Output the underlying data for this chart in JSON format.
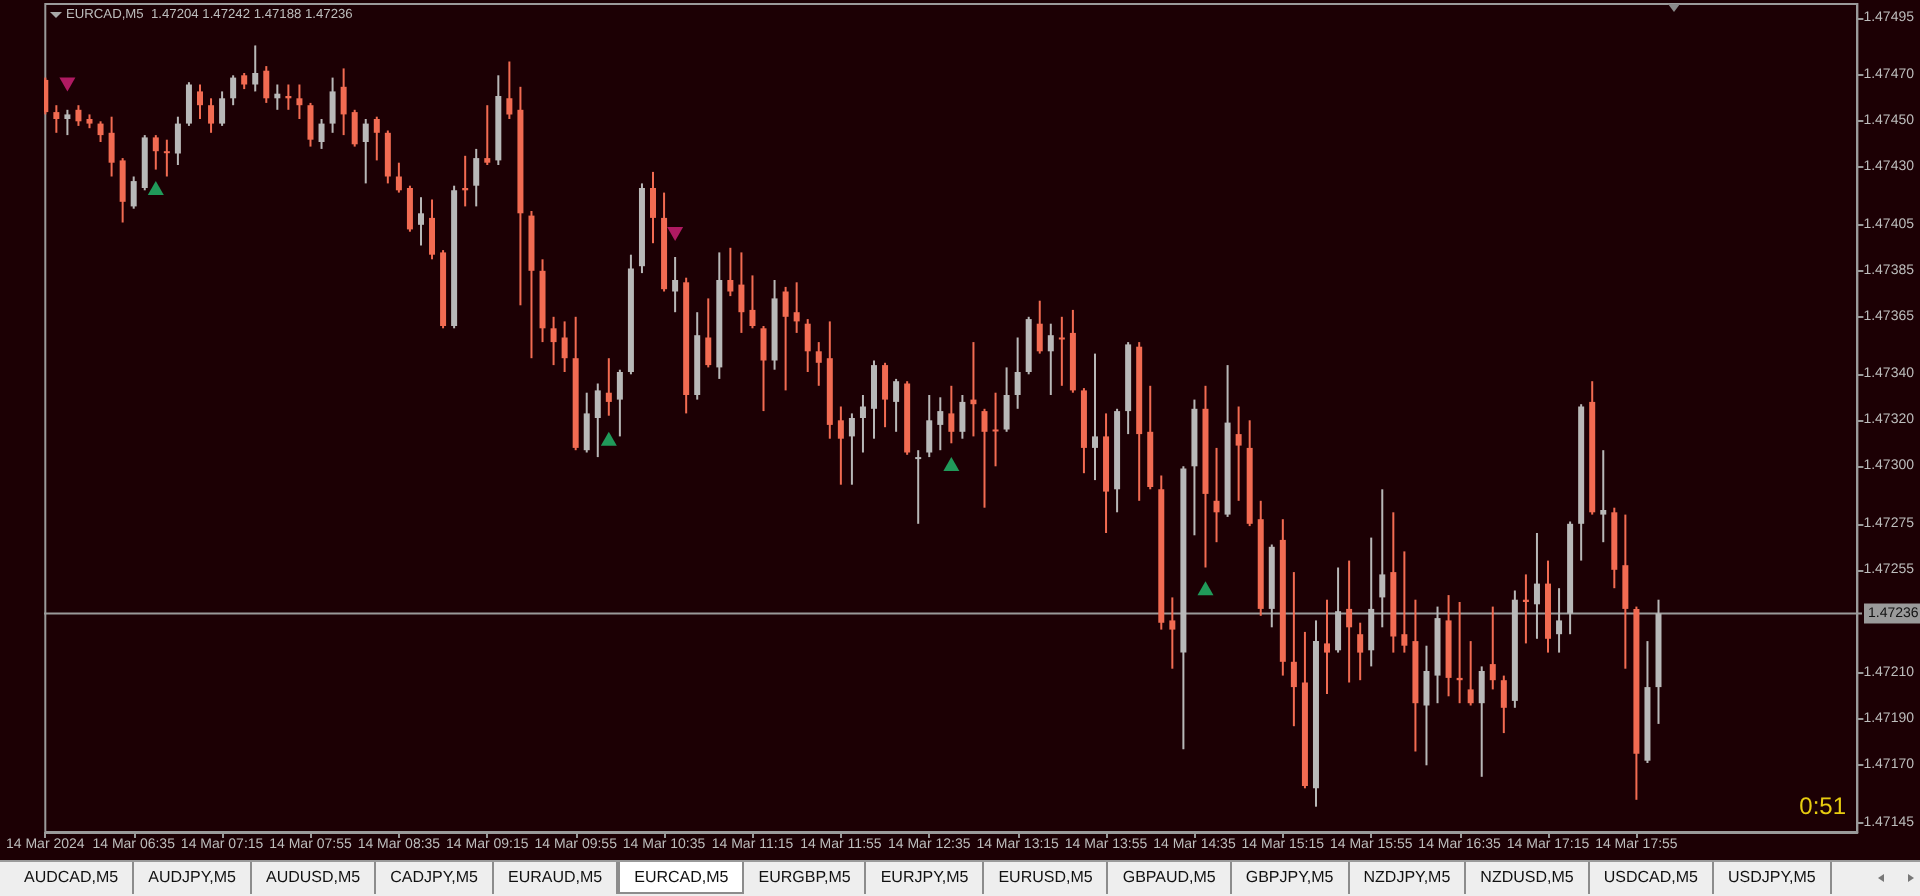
{
  "chart_data": {
    "type": "candlestick",
    "title": "EURCAD,M5  1.47204 1.47242 1.47188 1.47236",
    "categories": [
      "14 Mar 2024",
      null,
      null,
      null,
      null,
      null,
      null,
      null,
      "14 Mar 06:35",
      null,
      null,
      null,
      null,
      null,
      null,
      null,
      "14 Mar 07:15",
      null,
      null,
      null,
      null,
      null,
      null,
      null,
      "14 Mar 07:55",
      null,
      null,
      null,
      null,
      null,
      null,
      null,
      "14 Mar 08:35",
      null,
      null,
      null,
      null,
      null,
      null,
      null,
      "14 Mar 09:15",
      null,
      null,
      null,
      null,
      null,
      null,
      null,
      "14 Mar 09:55",
      null,
      null,
      null,
      null,
      null,
      null,
      null,
      "14 Mar 10:35",
      null,
      null,
      null,
      null,
      null,
      null,
      null,
      "14 Mar 11:15",
      null,
      null,
      null,
      null,
      null,
      null,
      null,
      "14 Mar 11:55",
      null,
      null,
      null,
      null,
      null,
      null,
      null,
      "14 Mar 12:35",
      null,
      null,
      null,
      null,
      null,
      null,
      null,
      "14 Mar 13:15",
      null,
      null,
      null,
      null,
      null,
      null,
      null,
      "14 Mar 13:55",
      null,
      null,
      null,
      null,
      null,
      null,
      null,
      "14 Mar 14:35",
      null,
      null,
      null,
      null,
      null,
      null,
      null,
      "14 Mar 15:15",
      null,
      null,
      null,
      null,
      null,
      null,
      null,
      "14 Mar 15:55",
      null,
      null,
      null,
      null,
      null,
      null,
      null,
      "14 Mar 16:35",
      null,
      null,
      null,
      null,
      null,
      null,
      null,
      "14 Mar 17:15",
      null,
      null,
      null,
      null,
      null,
      null,
      null,
      "14 Mar 17:55",
      null,
      null,
      null,
      null,
      null,
      null,
      null,
      null,
      null,
      null,
      null,
      null,
      null,
      null,
      null,
      null,
      null,
      null,
      null,
      null
    ],
    "ohlc": [
      [
        1.47468,
        1.47469,
        1.47453,
        1.47454
      ],
      [
        1.47454,
        1.47457,
        1.47445,
        1.47451
      ],
      [
        1.47451,
        1.47455,
        1.47444,
        1.47453
      ],
      [
        1.47455,
        1.47457,
        1.47448,
        1.4745
      ],
      [
        1.47451,
        1.47453,
        1.47447,
        1.47449
      ],
      [
        1.47449,
        1.4745,
        1.47441,
        1.47444
      ],
      [
        1.47445,
        1.47452,
        1.47426,
        1.47432
      ],
      [
        1.47433,
        1.47434,
        1.47406,
        1.47415
      ],
      [
        1.47413,
        1.47426,
        1.47412,
        1.47424
      ],
      [
        1.47421,
        1.47444,
        1.4742,
        1.47443
      ],
      [
        1.47443,
        1.47444,
        1.47429,
        1.47437
      ],
      [
        1.47437,
        1.47442,
        1.47426,
        1.47437
      ],
      [
        1.47436,
        1.47452,
        1.47431,
        1.47449
      ],
      [
        1.47449,
        1.47467,
        1.47448,
        1.47466
      ],
      [
        1.47463,
        1.47466,
        1.47451,
        1.47457
      ],
      [
        1.47457,
        1.4746,
        1.47445,
        1.47449
      ],
      [
        1.47449,
        1.47463,
        1.47448,
        1.4746
      ],
      [
        1.4746,
        1.4747,
        1.47457,
        1.47469
      ],
      [
        1.4747,
        1.47471,
        1.47464,
        1.47466
      ],
      [
        1.47466,
        1.47483,
        1.47463,
        1.47471
      ],
      [
        1.47472,
        1.47474,
        1.47458,
        1.4746
      ],
      [
        1.4746,
        1.47466,
        1.47455,
        1.47462
      ],
      [
        1.47461,
        1.47466,
        1.47455,
        1.4746
      ],
      [
        1.4746,
        1.47466,
        1.47451,
        1.47457
      ],
      [
        1.47457,
        1.47458,
        1.47439,
        1.47442
      ],
      [
        1.47441,
        1.47451,
        1.47438,
        1.47449
      ],
      [
        1.47449,
        1.47469,
        1.47445,
        1.47463
      ],
      [
        1.47465,
        1.47473,
        1.47444,
        1.47453
      ],
      [
        1.47454,
        1.47455,
        1.47439,
        1.4744
      ],
      [
        1.47441,
        1.47451,
        1.47423,
        1.47449
      ],
      [
        1.47451,
        1.47452,
        1.47433,
        1.47445
      ],
      [
        1.47445,
        1.47446,
        1.47423,
        1.47426
      ],
      [
        1.47426,
        1.47432,
        1.47419,
        1.4742
      ],
      [
        1.47421,
        1.47422,
        1.47402,
        1.47403
      ],
      [
        1.47405,
        1.47417,
        1.47396,
        1.4741
      ],
      [
        1.47408,
        1.47416,
        1.4739,
        1.47392
      ],
      [
        1.47393,
        1.47394,
        1.4736,
        1.47361
      ],
      [
        1.47361,
        1.47422,
        1.4736,
        1.4742
      ],
      [
        1.47421,
        1.47435,
        1.47413,
        1.4742
      ],
      [
        1.47422,
        1.47438,
        1.47413,
        1.47434
      ],
      [
        1.47434,
        1.47457,
        1.47431,
        1.47432
      ],
      [
        1.47433,
        1.4747,
        1.47431,
        1.47461
      ],
      [
        1.4746,
        1.47476,
        1.47451,
        1.47453
      ],
      [
        1.47455,
        1.47465,
        1.4737,
        1.4741
      ],
      [
        1.47409,
        1.47411,
        1.47347,
        1.47385
      ],
      [
        1.47385,
        1.4739,
        1.47354,
        1.4736
      ],
      [
        1.4736,
        1.47365,
        1.47344,
        1.47354
      ],
      [
        1.47356,
        1.47363,
        1.47341,
        1.47347
      ],
      [
        1.47347,
        1.47365,
        1.47307,
        1.47308
      ],
      [
        1.47307,
        1.47332,
        1.47306,
        1.47323
      ],
      [
        1.47321,
        1.47336,
        1.47304,
        1.47333
      ],
      [
        1.47332,
        1.47347,
        1.47322,
        1.47328
      ],
      [
        1.47329,
        1.47342,
        1.47313,
        1.47341
      ],
      [
        1.47341,
        1.47392,
        1.4734,
        1.47386
      ],
      [
        1.47387,
        1.47423,
        1.47384,
        1.47421
      ],
      [
        1.47421,
        1.47428,
        1.47397,
        1.47408
      ],
      [
        1.47408,
        1.47419,
        1.47376,
        1.47377
      ],
      [
        1.47376,
        1.47391,
        1.47367,
        1.47381
      ],
      [
        1.4738,
        1.47382,
        1.47323,
        1.47331
      ],
      [
        1.47331,
        1.47367,
        1.47329,
        1.47357
      ],
      [
        1.47356,
        1.47373,
        1.47343,
        1.47344
      ],
      [
        1.47343,
        1.47393,
        1.47338,
        1.47381
      ],
      [
        1.47381,
        1.47395,
        1.47374,
        1.47376
      ],
      [
        1.47379,
        1.47393,
        1.47358,
        1.47367
      ],
      [
        1.47368,
        1.47383,
        1.4736,
        1.47361
      ],
      [
        1.4736,
        1.47361,
        1.47324,
        1.47346
      ],
      [
        1.47346,
        1.47381,
        1.47342,
        1.47373
      ],
      [
        1.47376,
        1.47378,
        1.47333,
        1.47365
      ],
      [
        1.47367,
        1.4738,
        1.47358,
        1.47363
      ],
      [
        1.47362,
        1.47364,
        1.47341,
        1.4735
      ],
      [
        1.4735,
        1.47354,
        1.47335,
        1.47345
      ],
      [
        1.47347,
        1.47363,
        1.47312,
        1.47318
      ],
      [
        1.4732,
        1.47326,
        1.47292,
        1.47312
      ],
      [
        1.47313,
        1.47323,
        1.47292,
        1.47321
      ],
      [
        1.47321,
        1.47331,
        1.47306,
        1.47326
      ],
      [
        1.47325,
        1.47346,
        1.47312,
        1.47344
      ],
      [
        1.47344,
        1.47345,
        1.47317,
        1.47329
      ],
      [
        1.47328,
        1.47338,
        1.47315,
        1.47337
      ],
      [
        1.47336,
        1.47337,
        1.47305,
        1.47306
      ],
      [
        1.47304,
        1.47307,
        1.47275,
        1.47304
      ],
      [
        1.47306,
        1.47331,
        1.47304,
        1.4732
      ],
      [
        1.47318,
        1.4733,
        1.47307,
        1.47324
      ],
      [
        1.47323,
        1.47335,
        1.4731,
        1.47315
      ],
      [
        1.47315,
        1.47331,
        1.47312,
        1.47328
      ],
      [
        1.47329,
        1.47354,
        1.47313,
        1.47327
      ],
      [
        1.47324,
        1.47325,
        1.47282,
        1.47315
      ],
      [
        1.47316,
        1.47332,
        1.473,
        1.47316
      ],
      [
        1.47316,
        1.47343,
        1.47315,
        1.47331
      ],
      [
        1.47331,
        1.47356,
        1.47325,
        1.47341
      ],
      [
        1.47341,
        1.47365,
        1.4734,
        1.47364
      ],
      [
        1.47362,
        1.47372,
        1.47349,
        1.4735
      ],
      [
        1.4735,
        1.47362,
        1.47331,
        1.47357
      ],
      [
        1.47356,
        1.47365,
        1.47335,
        1.47356
      ],
      [
        1.47358,
        1.47368,
        1.47332,
        1.47333
      ],
      [
        1.47333,
        1.47334,
        1.47297,
        1.47308
      ],
      [
        1.47308,
        1.47349,
        1.47294,
        1.47313
      ],
      [
        1.47313,
        1.47323,
        1.47271,
        1.47289
      ],
      [
        1.4729,
        1.47325,
        1.4728,
        1.47324
      ],
      [
        1.47324,
        1.47354,
        1.47314,
        1.47353
      ],
      [
        1.47352,
        1.47354,
        1.47285,
        1.47314
      ],
      [
        1.47315,
        1.47335,
        1.4729,
        1.47291
      ],
      [
        1.4729,
        1.47296,
        1.47229,
        1.47232
      ],
      [
        1.47233,
        1.47243,
        1.47212,
        1.47229
      ],
      [
        1.47219,
        1.473,
        1.47177,
        1.47299
      ],
      [
        1.473,
        1.47329,
        1.4727,
        1.47325
      ],
      [
        1.47325,
        1.47335,
        1.47256,
        1.47288
      ],
      [
        1.47285,
        1.47308,
        1.47267,
        1.4728
      ],
      [
        1.47279,
        1.47344,
        1.47278,
        1.47319
      ],
      [
        1.47314,
        1.47326,
        1.47285,
        1.47309
      ],
      [
        1.47308,
        1.4732,
        1.47274,
        1.47275
      ],
      [
        1.47277,
        1.47285,
        1.47235,
        1.47238
      ],
      [
        1.47238,
        1.47266,
        1.4723,
        1.47265
      ],
      [
        1.47268,
        1.47277,
        1.47209,
        1.47215
      ],
      [
        1.47215,
        1.47254,
        1.47187,
        1.47204
      ],
      [
        1.47206,
        1.47228,
        1.4716,
        1.47161
      ],
      [
        1.4716,
        1.47233,
        1.47152,
        1.47224
      ],
      [
        1.47223,
        1.47242,
        1.47201,
        1.47219
      ],
      [
        1.4722,
        1.47256,
        1.47219,
        1.47237
      ],
      [
        1.47238,
        1.47259,
        1.47206,
        1.4723
      ],
      [
        1.47227,
        1.47232,
        1.47207,
        1.47219
      ],
      [
        1.4722,
        1.47269,
        1.47213,
        1.47238
      ],
      [
        1.47243,
        1.4729,
        1.4723,
        1.47253
      ],
      [
        1.47254,
        1.4728,
        1.47219,
        1.47226
      ],
      [
        1.47227,
        1.47263,
        1.47219,
        1.47222
      ],
      [
        1.47224,
        1.47242,
        1.47176,
        1.47197
      ],
      [
        1.47196,
        1.47222,
        1.4717,
        1.47211
      ],
      [
        1.47209,
        1.47239,
        1.47197,
        1.47234
      ],
      [
        1.47233,
        1.47244,
        1.472,
        1.47208
      ],
      [
        1.47208,
        1.47241,
        1.47197,
        1.47207
      ],
      [
        1.47203,
        1.47224,
        1.47196,
        1.47197
      ],
      [
        1.47197,
        1.47213,
        1.47165,
        1.47211
      ],
      [
        1.47214,
        1.47239,
        1.47203,
        1.47207
      ],
      [
        1.47207,
        1.47209,
        1.47184,
        1.47195
      ],
      [
        1.47198,
        1.47246,
        1.47195,
        1.47242
      ],
      [
        1.47242,
        1.47253,
        1.47223,
        1.47241
      ],
      [
        1.4724,
        1.47271,
        1.47225,
        1.47249
      ],
      [
        1.47249,
        1.47259,
        1.47219,
        1.47225
      ],
      [
        1.47227,
        1.47247,
        1.47219,
        1.47233
      ],
      [
        1.47236,
        1.47276,
        1.47227,
        1.47275
      ],
      [
        1.47275,
        1.47327,
        1.47259,
        1.47326
      ],
      [
        1.47328,
        1.47337,
        1.47279,
        1.4728
      ],
      [
        1.47279,
        1.47307,
        1.47267,
        1.47281
      ],
      [
        1.4728,
        1.47282,
        1.47247,
        1.47255
      ],
      [
        1.47257,
        1.47279,
        1.47212,
        1.47238
      ],
      [
        1.47238,
        1.47239,
        1.47155,
        1.47175
      ],
      [
        1.47172,
        1.47224,
        1.47171,
        1.47204
      ],
      [
        1.47204,
        1.47242,
        1.47188,
        1.47236
      ],
      null,
      null,
      null,
      null,
      null,
      null,
      null,
      null,
      null,
      null,
      null,
      null,
      null,
      null,
      null,
      null,
      null,
      null
    ],
    "colors": [
      "#f26b52",
      "#f26b52",
      "#b8b8b8",
      "#f26b52",
      "#f26b52",
      "#f26b52",
      "#f26b52",
      "#f26b52",
      "#b8b8b8",
      "#b8b8b8",
      "#f26b52",
      "#f26b52",
      "#b8b8b8",
      "#b8b8b8",
      "#f26b52",
      "#f26b52",
      "#b8b8b8",
      "#b8b8b8",
      "#f26b52",
      "#b8b8b8",
      "#f26b52",
      "#b8b8b8",
      "#f26b52",
      "#f26b52",
      "#f26b52",
      "#b8b8b8",
      "#b8b8b8",
      "#f26b52",
      "#f26b52",
      "#b8b8b8",
      "#f26b52",
      "#f26b52",
      "#f26b52",
      "#f26b52",
      "#b8b8b8",
      "#f26b52",
      "#f26b52",
      "#b8b8b8",
      "#f26b52",
      "#b8b8b8",
      "#f26b52",
      "#b8b8b8",
      "#f26b52",
      "#f26b52",
      "#f26b52",
      "#f26b52",
      "#f26b52",
      "#f26b52",
      "#f26b52",
      "#b8b8b8",
      "#b8b8b8",
      "#f26b52",
      "#b8b8b8",
      "#b8b8b8",
      "#b8b8b8",
      "#f26b52",
      "#f26b52",
      "#b8b8b8",
      "#f26b52",
      "#b8b8b8",
      "#f26b52",
      "#b8b8b8",
      "#f26b52",
      "#f26b52",
      "#f26b52",
      "#f26b52",
      "#b8b8b8",
      "#f26b52",
      "#f26b52",
      "#f26b52",
      "#f26b52",
      "#f26b52",
      "#f26b52",
      "#b8b8b8",
      "#b8b8b8",
      "#b8b8b8",
      "#f26b52",
      "#b8b8b8",
      "#f26b52",
      "#b8b8b8",
      "#b8b8b8",
      "#b8b8b8",
      "#f26b52",
      "#b8b8b8",
      "#f26b52",
      "#f26b52",
      "#f26b52",
      "#b8b8b8",
      "#b8b8b8",
      "#b8b8b8",
      "#f26b52",
      "#b8b8b8",
      "#f26b52",
      "#f26b52",
      "#f26b52",
      "#b8b8b8",
      "#f26b52",
      "#b8b8b8",
      "#b8b8b8",
      "#f26b52",
      "#f26b52",
      "#f26b52",
      "#f26b52",
      "#b8b8b8",
      "#b8b8b8",
      "#f26b52",
      "#f26b52",
      "#b8b8b8",
      "#f26b52",
      "#f26b52",
      "#f26b52",
      "#b8b8b8",
      "#f26b52",
      "#f26b52",
      "#f26b52",
      "#b8b8b8",
      "#f26b52",
      "#b8b8b8",
      "#f26b52",
      "#f26b52",
      "#b8b8b8",
      "#b8b8b8",
      "#f26b52",
      "#f26b52",
      "#f26b52",
      "#b8b8b8",
      "#b8b8b8",
      "#f26b52",
      "#f26b52",
      "#f26b52",
      "#b8b8b8",
      "#f26b52",
      "#f26b52",
      "#b8b8b8",
      "#f26b52",
      "#b8b8b8",
      "#f26b52",
      "#b8b8b8",
      "#b8b8b8",
      "#b8b8b8",
      "#f26b52",
      "#b8b8b8",
      "#f26b52",
      "#f26b52",
      "#f26b52",
      "#b8b8b8",
      "#b8b8b8",
      null,
      null,
      null,
      null,
      null,
      null,
      null,
      null,
      null,
      null,
      null,
      null,
      null,
      null,
      null,
      null,
      null,
      null
    ],
    "series": [
      {
        "type": "scatter",
        "color": "#d4207a",
        "marker": "triangle",
        "values": [
          null,
          null,
          1.47466,
          null,
          null,
          null,
          null,
          null,
          null,
          null,
          null,
          null,
          null,
          null,
          null,
          null,
          null,
          null,
          null,
          null,
          null,
          null,
          null,
          null,
          null,
          null,
          null,
          null,
          null,
          null,
          null,
          null,
          null,
          null,
          null,
          null,
          null,
          null,
          null,
          null,
          null,
          null,
          null,
          null,
          null,
          null,
          null,
          null,
          null,
          null,
          null,
          null,
          null,
          null,
          null,
          null,
          null,
          1.47401,
          null,
          null,
          null,
          null,
          null,
          null,
          null,
          null,
          null,
          null,
          null,
          null,
          null,
          null,
          null,
          null,
          null,
          null,
          null,
          null,
          null,
          null,
          null,
          null,
          null,
          null,
          null,
          null,
          null,
          null,
          null,
          null,
          null,
          null,
          null,
          null,
          null,
          null,
          null,
          null,
          null,
          null,
          null,
          null,
          null,
          null,
          null,
          null,
          null,
          null,
          null,
          null,
          null,
          null,
          null,
          null,
          null,
          null,
          null,
          null,
          null,
          null,
          null,
          null,
          null,
          null,
          null,
          null,
          null,
          null,
          null,
          null,
          null,
          null,
          null,
          null,
          null,
          null,
          null,
          null,
          null,
          null,
          null,
          null,
          null,
          null,
          null,
          null,
          null,
          null,
          null,
          null,
          null,
          null,
          null,
          null,
          null,
          null,
          null,
          null,
          null,
          null,
          null,
          null,
          null,
          null,
          null
        ]
      },
      {
        "type": "scatter",
        "color": "#22c070",
        "marker": "triangle",
        "values": [
          null,
          null,
          null,
          null,
          null,
          null,
          null,
          null,
          null,
          null,
          1.47421,
          null,
          null,
          null,
          null,
          null,
          null,
          null,
          null,
          null,
          null,
          null,
          null,
          null,
          null,
          null,
          null,
          null,
          null,
          null,
          null,
          null,
          null,
          null,
          null,
          null,
          null,
          null,
          null,
          null,
          null,
          null,
          null,
          null,
          null,
          null,
          null,
          null,
          null,
          null,
          null,
          1.47312,
          null,
          null,
          null,
          null,
          null,
          null,
          null,
          null,
          null,
          null,
          null,
          null,
          null,
          null,
          null,
          null,
          null,
          null,
          null,
          null,
          null,
          null,
          null,
          null,
          null,
          null,
          null,
          null,
          null,
          null,
          1.47301,
          null,
          null,
          null,
          null,
          null,
          null,
          null,
          null,
          null,
          null,
          null,
          null,
          null,
          null,
          null,
          null,
          null,
          null,
          null,
          null,
          null,
          null,
          1.47247,
          null,
          null,
          null,
          null,
          null,
          null,
          null,
          null,
          null,
          null,
          null,
          null,
          null,
          null,
          null,
          null,
          null,
          null,
          null,
          null,
          null,
          null,
          null,
          null,
          null,
          null,
          null,
          null,
          null,
          null,
          null,
          null,
          null,
          null,
          null,
          null,
          null,
          null,
          null,
          null,
          null,
          null,
          null,
          null,
          null,
          null,
          null,
          null,
          null,
          null,
          null,
          null,
          null,
          null,
          null,
          null,
          null,
          null,
          null
        ]
      }
    ],
    "ylim": [
      1.47141,
      1.47501
    ],
    "yticks": [
      1.47495,
      {
        "value": 1.4747,
        "label": "1.47470"
      },
      {
        "value": 1.4745,
        "label": "1.47450"
      },
      {
        "value": 1.4743,
        "label": "1.47430"
      },
      1.47405,
      1.47385,
      1.47365,
      {
        "value": 1.4734,
        "label": "1.47340"
      },
      {
        "value": 1.4732,
        "label": "1.47320"
      },
      {
        "value": 1.473,
        "label": "1.47300"
      },
      1.47275,
      1.47255,
      {
        "value": 1.4721,
        "label": "1.47210"
      },
      {
        "value": 1.4719,
        "label": "1.47190"
      },
      {
        "value": 1.4717,
        "label": "1.47170"
      },
      1.47145
    ],
    "ref_lines": [
      {
        "axis": "y",
        "value": 1.47236,
        "label": "1.47236",
        "color": "#9a9a9a"
      }
    ],
    "annotations": [
      "0:51",
      "AUDCAD,M5",
      "AUDJPY,M5",
      "AUDUSD,M5",
      "CADJPY,M5",
      "EURAUD,M5",
      "EURCAD,M5",
      "EURGBP,M5",
      "EURJPY,M5",
      "EURUSD,M5",
      "GBPAUD,M5",
      "GBPJPY,M5",
      "NZDJPY,M5",
      "NZDUSD,M5",
      "USDCAD,M5",
      "USDJPY,M5"
    ]
  }
}
